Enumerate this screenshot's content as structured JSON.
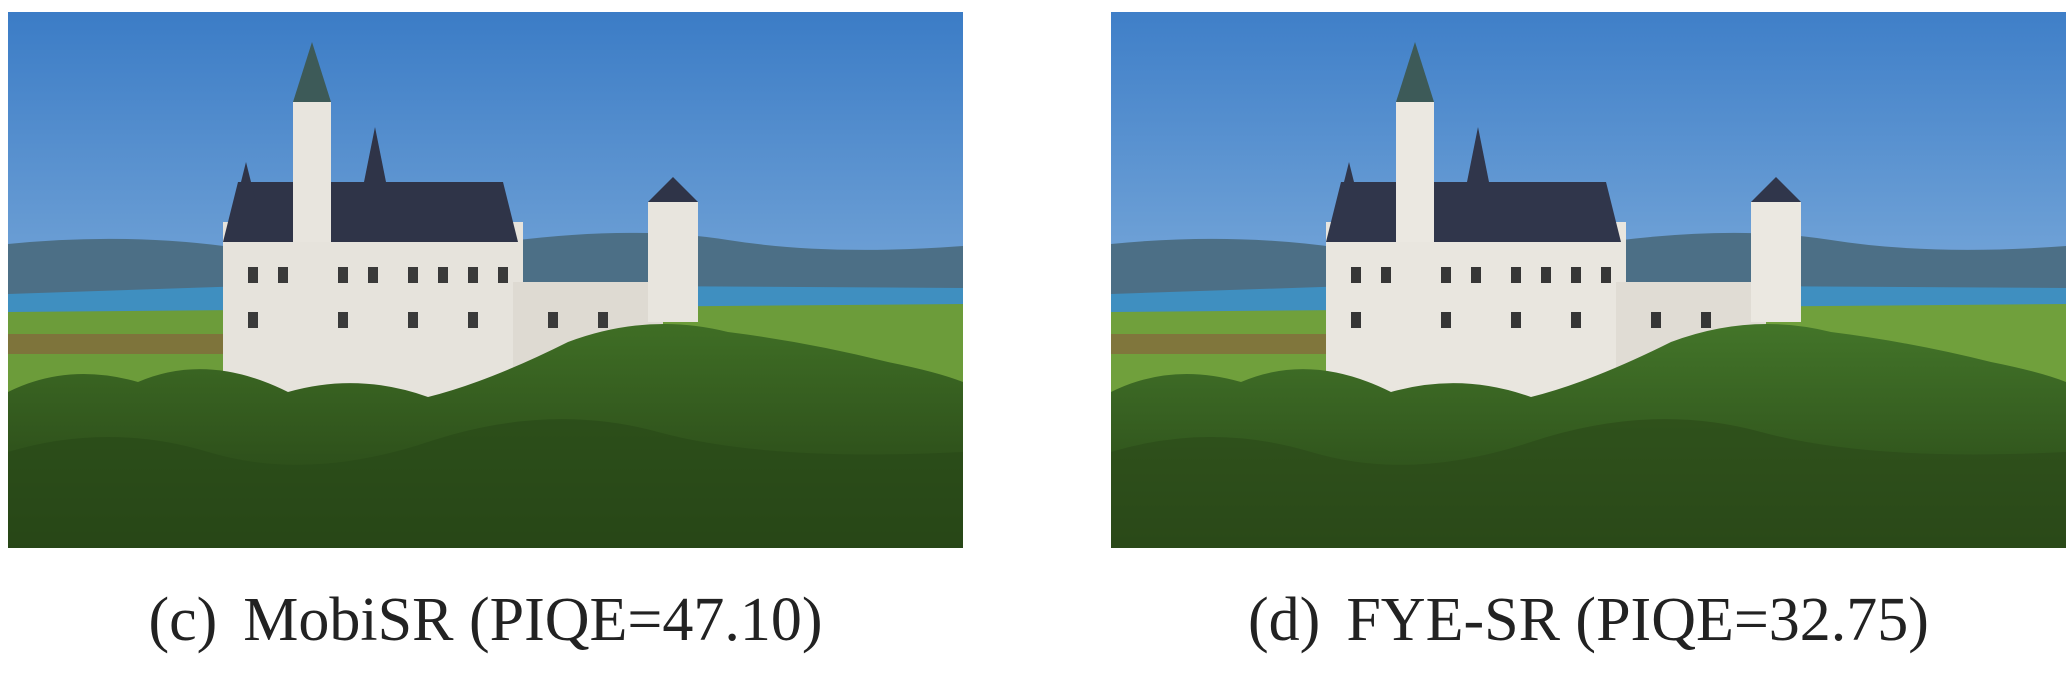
{
  "panels": [
    {
      "label": "(c)",
      "caption": "MobiSR (PIQE=47.10)",
      "image": "castle-mobisr"
    },
    {
      "label": "(d)",
      "caption": "FYE-SR (PIQE=32.75)",
      "image": "castle-fye-sr"
    }
  ],
  "colors": {
    "sky_top": "#3f7fc8",
    "sky_bottom": "#a9cbe8",
    "forest": "#2f5a1e",
    "castle_wall": "#e6e3dc",
    "roof": "#2f3448",
    "lake": "#3f8fc0",
    "meadow": "#6c9c3a"
  }
}
